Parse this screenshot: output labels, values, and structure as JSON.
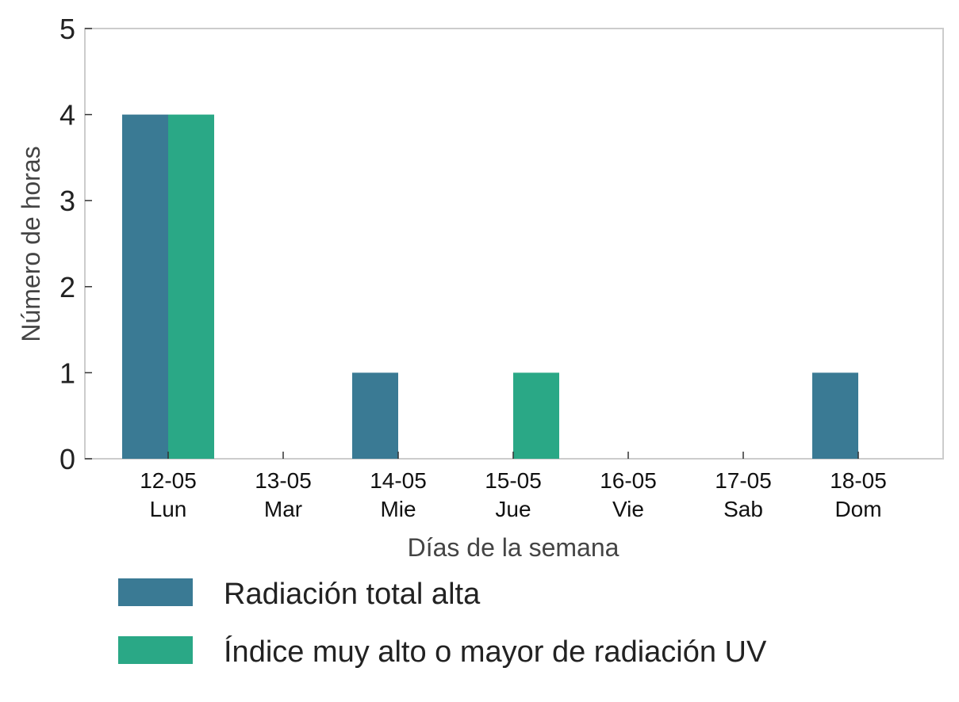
{
  "chart_data": {
    "type": "bar",
    "categories": [
      [
        "12-05",
        "Lun"
      ],
      [
        "13-05",
        "Mar"
      ],
      [
        "14-05",
        "Mie"
      ],
      [
        "15-05",
        "Jue"
      ],
      [
        "16-05",
        "Vie"
      ],
      [
        "17-05",
        "Sab"
      ],
      [
        "18-05",
        "Dom"
      ]
    ],
    "series": [
      {
        "name": "Radiación total alta",
        "color": "#3a7a94",
        "values": [
          4,
          0,
          1,
          0,
          0,
          0,
          1
        ]
      },
      {
        "name": "Índice muy alto o mayor de radiación UV",
        "color": "#2aa886",
        "values": [
          4,
          0,
          0,
          1,
          0,
          0,
          0
        ]
      }
    ],
    "xlabel": "Días de la semana",
    "ylabel": "Número de horas",
    "ylim": [
      0,
      5
    ],
    "yticks": [
      0,
      1,
      2,
      3,
      4,
      5
    ],
    "grid": false,
    "legend_position": "bottom"
  }
}
